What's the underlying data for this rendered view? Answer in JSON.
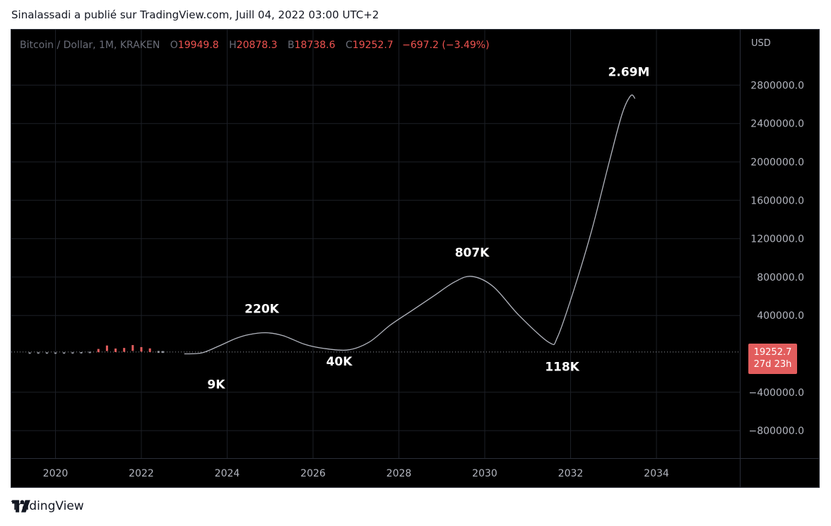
{
  "header": {
    "published": "Sinalassadi a publié sur TradingView.com, Juill 04, 2022 03:00 UTC+2"
  },
  "legend": {
    "symbol": "Bitcoin / Dollar, 1M, KRAKEN",
    "open_key": "O",
    "open": "19949.8",
    "high_key": "H",
    "high": "20878.3",
    "low_key": "B",
    "low": "18738.6",
    "close_key": "C",
    "close": "19252.7",
    "change": "−697.2 (−3.49%)"
  },
  "axis": {
    "currency": "USD"
  },
  "price_tag": {
    "price": "19252.7",
    "countdown": "27d 23h"
  },
  "footer": {
    "brand": "TradingView"
  },
  "colors": {
    "background": "#000000",
    "grid": "#1c1f26",
    "line": "#b2b5be",
    "accent": "#e25d5d",
    "label": "#ffffff"
  },
  "chart_data": {
    "type": "line",
    "xlabel": "",
    "ylabel": "",
    "xlim": [
      2019.3,
      2036.0
    ],
    "ylim": [
      -1100000,
      3100000
    ],
    "x_ticks": [
      2020,
      2022,
      2024,
      2026,
      2028,
      2030,
      2032,
      2034
    ],
    "x_tick_labels": [
      "2020",
      "2022",
      "2024",
      "2026",
      "2028",
      "2030",
      "2032",
      "2034"
    ],
    "y_ticks": [
      -800000,
      -400000,
      400000,
      800000,
      1200000,
      1600000,
      2000000,
      2400000,
      2800000
    ],
    "y_tick_labels": [
      "−800000.0",
      "−400000.0",
      "400000.0",
      "800000.0",
      "1200000.0",
      "1600000.0",
      "2000000.0",
      "2400000.0",
      "2800000.0"
    ],
    "grid": true,
    "current_price": 19252.7,
    "series": [
      {
        "values_x": [
          2023.0,
          2023.4,
          2023.8,
          2024.2,
          2024.5,
          2024.9,
          2025.3,
          2025.8,
          2026.2,
          2026.8,
          2027.3,
          2027.8,
          2028.3,
          2028.8,
          2029.3,
          2029.7,
          2030.2,
          2030.8,
          2031.5,
          2031.7,
          2032.1,
          2032.5,
          2032.9,
          2033.2,
          2033.4,
          2033.5
        ],
        "values_y": [
          0,
          9000,
          80000,
          160000,
          200000,
          220000,
          190000,
          100000,
          60000,
          40000,
          120000,
          300000,
          450000,
          600000,
          750000,
          807000,
          700000,
          400000,
          118000,
          180000,
          700000,
          1300000,
          2000000,
          2500000,
          2690000,
          2660000
        ]
      }
    ],
    "candles": [
      {
        "x": 2019.4,
        "y": 8000
      },
      {
        "x": 2019.6,
        "y": 9000
      },
      {
        "x": 2019.8,
        "y": 8500
      },
      {
        "x": 2020.0,
        "y": 7500
      },
      {
        "x": 2020.2,
        "y": 8700
      },
      {
        "x": 2020.4,
        "y": 9400
      },
      {
        "x": 2020.6,
        "y": 11500
      },
      {
        "x": 2020.8,
        "y": 15000
      },
      {
        "x": 2021.0,
        "y": 34000
      },
      {
        "x": 2021.2,
        "y": 58000
      },
      {
        "x": 2021.4,
        "y": 37000
      },
      {
        "x": 2021.6,
        "y": 41000
      },
      {
        "x": 2021.8,
        "y": 61000
      },
      {
        "x": 2022.0,
        "y": 47000
      },
      {
        "x": 2022.2,
        "y": 38000
      },
      {
        "x": 2022.4,
        "y": 20000
      },
      {
        "x": 2022.5,
        "y": 19252.7
      }
    ],
    "annotations": [
      {
        "text": "2.69M",
        "x": 2033.3,
        "y": 2690000
      },
      {
        "text": "807K",
        "x": 2029.6,
        "y": 807000
      },
      {
        "text": "220K",
        "x": 2024.9,
        "y": 220000
      },
      {
        "text": "40K",
        "x": 2026.8,
        "y": 40000
      },
      {
        "text": "118K",
        "x": 2031.6,
        "y": 118000
      },
      {
        "text": "9K",
        "x": 2023.9,
        "y": 9000
      }
    ]
  }
}
